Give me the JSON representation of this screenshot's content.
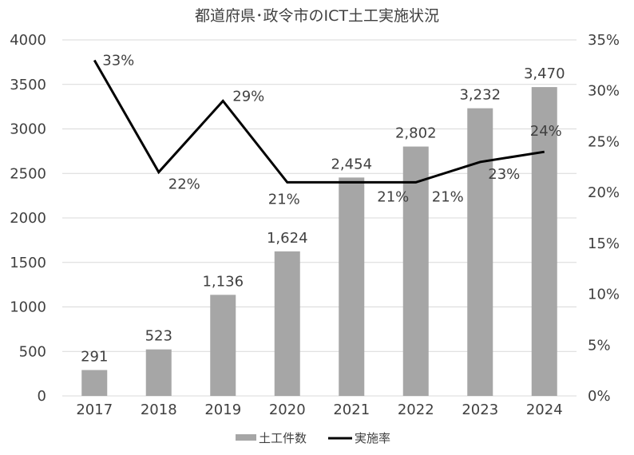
{
  "chart_data": {
    "type": "bar",
    "title": "都道府県･政令市のICT土工実施状況",
    "categories": [
      "2017",
      "2018",
      "2019",
      "2020",
      "2021",
      "2022",
      "2023",
      "2024"
    ],
    "series": [
      {
        "name": "土工件数",
        "type": "bar",
        "axis": "left",
        "values": [
          291,
          523,
          1136,
          1624,
          2454,
          2802,
          3232,
          3470
        ],
        "labels": [
          "291",
          "523",
          "1,136",
          "1,624",
          "2,454",
          "2,802",
          "3,232",
          "3,470"
        ],
        "color": "#a6a6a6"
      },
      {
        "name": "実施率",
        "type": "line",
        "axis": "right",
        "values": [
          33,
          22,
          29,
          21,
          21,
          21,
          23,
          24
        ],
        "labels": [
          "33%",
          "22%",
          "29%",
          "21%",
          "21%",
          "21%",
          "23%",
          "24%"
        ],
        "color": "#000000"
      }
    ],
    "y_left": {
      "range": [
        0,
        4000
      ],
      "ticks": [
        "0",
        "500",
        "1000",
        "1500",
        "2000",
        "2500",
        "3000",
        "3500",
        "4000"
      ]
    },
    "y_right": {
      "range": [
        0,
        35
      ],
      "ticks": [
        "0%",
        "5%",
        "10%",
        "15%",
        "20%",
        "25%",
        "30%",
        "35%"
      ]
    },
    "grid": true,
    "legend_position": "bottom"
  }
}
